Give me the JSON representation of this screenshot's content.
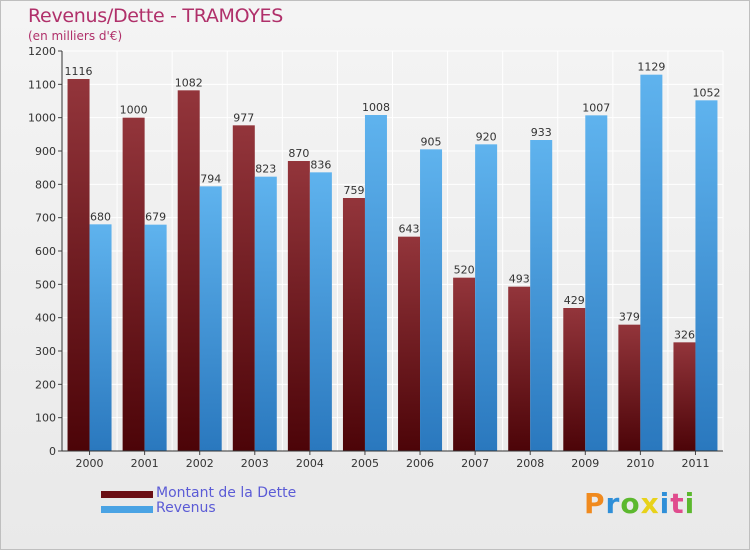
{
  "title": "Revenus/Dette - TRAMOYES",
  "subtitle": "(en milliers d'€)",
  "logo_text": "Proxiti",
  "logo_colors": [
    "#f08a1e",
    "#2f8fd8",
    "#5cb82e",
    "#e8d21a",
    "#2f8fd8",
    "#e04c8e",
    "#5cb82e"
  ],
  "chart_data": {
    "type": "bar",
    "categories": [
      "2000",
      "2001",
      "2002",
      "2003",
      "2004",
      "2005",
      "2006",
      "2007",
      "2008",
      "2009",
      "2010",
      "2011"
    ],
    "series": [
      {
        "name": "Montant de la Dette",
        "color": "#7a1a1f",
        "values": [
          1116,
          1000,
          1082,
          977,
          870,
          759,
          643,
          520,
          493,
          429,
          379,
          326
        ]
      },
      {
        "name": "Revenus",
        "color": "#4aa3e4",
        "values": [
          680,
          679,
          794,
          823,
          836,
          1008,
          905,
          920,
          933,
          1007,
          1129,
          1052
        ]
      }
    ],
    "ylim": [
      0,
      1200
    ],
    "yticks": [
      0,
      100,
      200,
      300,
      400,
      500,
      600,
      700,
      800,
      900,
      1000,
      1100,
      1200
    ],
    "grid": true,
    "legend_position": "bottom-left"
  }
}
